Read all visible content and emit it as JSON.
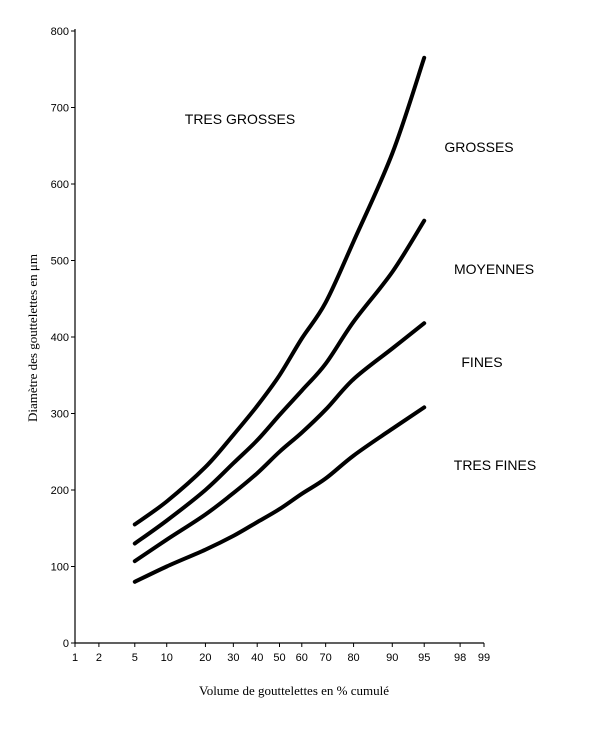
{
  "chart_data": {
    "type": "line",
    "title": "",
    "xlabel": "Volume de gouttelettes en % cumulé",
    "ylabel": "Diamètre des gouttelettes en μm",
    "ylim": [
      0,
      800
    ],
    "x_scale": "probability",
    "x_ticks": [
      1,
      2,
      5,
      10,
      20,
      30,
      40,
      50,
      60,
      70,
      80,
      90,
      95,
      98,
      99
    ],
    "x_tick_labels": [
      "1",
      "2",
      "5",
      "10",
      "20",
      "30",
      "40",
      "50",
      "60",
      "70",
      "80",
      "90",
      "95",
      "98",
      "99"
    ],
    "y_ticks": [
      0,
      100,
      200,
      300,
      400,
      500,
      600,
      700,
      800
    ],
    "y_tick_labels": [
      "0",
      "100",
      "200",
      "300",
      "400",
      "500",
      "600",
      "700",
      "800"
    ],
    "grid": false,
    "x": [
      5,
      10,
      20,
      30,
      40,
      50,
      60,
      70,
      80,
      90,
      95
    ],
    "series": [
      {
        "values": [
          155,
          185,
          230,
          272,
          310,
          350,
          398,
          445,
          525,
          640,
          765
        ]
      },
      {
        "values": [
          130,
          160,
          200,
          235,
          265,
          298,
          330,
          365,
          420,
          485,
          552
        ]
      },
      {
        "values": [
          107,
          135,
          168,
          196,
          222,
          250,
          275,
          305,
          345,
          385,
          418
        ]
      },
      {
        "values": [
          80,
          100,
          122,
          140,
          158,
          175,
          195,
          215,
          245,
          280,
          308
        ]
      }
    ],
    "regions": [
      {
        "label": "TRES GROSSES"
      },
      {
        "label": "GROSSES"
      },
      {
        "label": "MOYENNES"
      },
      {
        "label": "FINES"
      },
      {
        "label": "TRES FINES"
      }
    ]
  }
}
